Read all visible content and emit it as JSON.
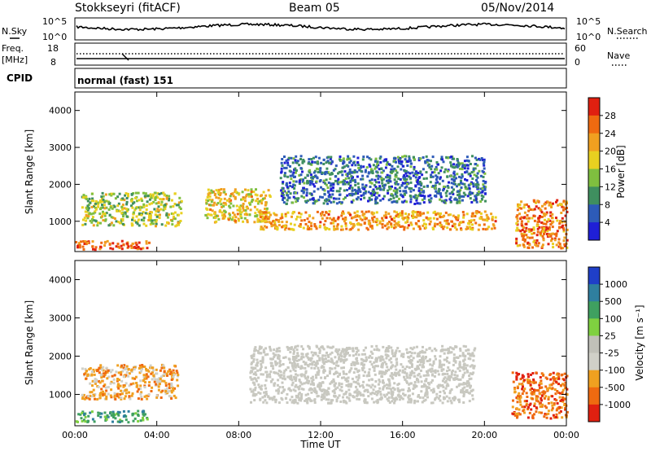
{
  "header": {
    "station": "Stokkseyri (fitACF)",
    "beam": "Beam 05",
    "date": "05/Nov/2014"
  },
  "noise_panel": {
    "left_label": "N.Sky",
    "right_label": "N.Search",
    "left_ticks": [
      "10^5",
      "10^0"
    ],
    "right_ticks": [
      "10^5",
      "10^0"
    ]
  },
  "freq_panel": {
    "left_label_top": "Freq.",
    "left_label_unit": "[MHz]",
    "left_ticks": [
      "18",
      "8"
    ],
    "right_label": "Nave",
    "right_ticks": [
      "60",
      "0"
    ],
    "cpid_label": "CPID",
    "cpid_value": "normal (fast) 151"
  },
  "colors": {
    "power_scale": [
      "#1f1fd6",
      "#2d5bb8",
      "#3f8f5f",
      "#7fbf3f",
      "#e8d020",
      "#f0a020",
      "#ef6a10",
      "#e02010"
    ],
    "velocity_scale": [
      "#1f3fc8",
      "#2f7f9f",
      "#3fa060",
      "#7fd040",
      "#c0c0b8",
      "#d0d0c8",
      "#f0a020",
      "#ef6a10",
      "#e02010"
    ],
    "ground_scatter": "#c8c8c0"
  },
  "chart_data": [
    {
      "type": "heatmap",
      "title": "",
      "xlabel": "Time UT",
      "ylabel": "Slant Range [km]",
      "xlim": [
        "00:00",
        "24:00"
      ],
      "ylim": [
        180,
        4500
      ],
      "x_ticks": [
        "00:00",
        "04:00",
        "08:00",
        "12:00",
        "16:00",
        "20:00",
        "00:00"
      ],
      "y_ticks": [
        "1000",
        "2000",
        "3000",
        "4000"
      ],
      "colorbar": {
        "label": "Power [dB]",
        "ticks": [
          "4",
          "8",
          "12",
          "16",
          "20",
          "24",
          "28"
        ],
        "range": [
          0,
          30
        ]
      },
      "bands": [
        {
          "t_start": 0.0,
          "t_end": 3.6,
          "range_km": [
            250,
            500
          ],
          "value_db": 26
        },
        {
          "t_start": 0.3,
          "t_end": 5.2,
          "range_km": [
            900,
            1800
          ],
          "value_db": 14
        },
        {
          "t_start": 6.3,
          "t_end": 9.5,
          "range_km": [
            1000,
            1900
          ],
          "value_db": 18
        },
        {
          "t_start": 9.0,
          "t_end": 20.5,
          "range_km": [
            800,
            1300
          ],
          "value_db": 22
        },
        {
          "t_start": 10.0,
          "t_end": 20.0,
          "range_km": [
            1500,
            2800
          ],
          "value_db": 6
        },
        {
          "t_start": 21.5,
          "t_end": 24.0,
          "range_km": [
            300,
            1600
          ],
          "value_db": 24
        }
      ]
    },
    {
      "type": "heatmap",
      "title": "",
      "xlabel": "Time UT",
      "ylabel": "Slant Range [km]",
      "xlim": [
        "00:00",
        "24:00"
      ],
      "ylim": [
        180,
        4500
      ],
      "x_ticks": [
        "00:00",
        "04:00",
        "08:00",
        "12:00",
        "16:00",
        "20:00",
        "00:00"
      ],
      "y_ticks": [
        "1000",
        "2000",
        "3000",
        "4000"
      ],
      "colorbar": {
        "label": "Velocity [m s⁻¹]",
        "ticks": [
          "1000",
          "500",
          "100",
          "25",
          "-25",
          "-100",
          "-500",
          "-1000"
        ]
      },
      "bands": [
        {
          "t_start": 0.0,
          "t_end": 3.5,
          "range_km": [
            300,
            600
          ],
          "value_ms": 100
        },
        {
          "t_start": 0.3,
          "t_end": 5.0,
          "range_km": [
            900,
            1800
          ],
          "value_ms": -100
        },
        {
          "t_start": 8.5,
          "t_end": 19.5,
          "range_km": [
            800,
            2300
          ],
          "value_ms": 0
        },
        {
          "t_start": 21.3,
          "t_end": 24.0,
          "range_km": [
            400,
            1600
          ],
          "value_ms": -500
        }
      ]
    }
  ]
}
